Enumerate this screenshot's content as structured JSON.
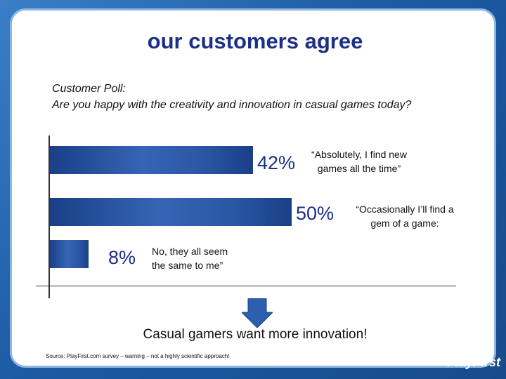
{
  "slide": {
    "title": "our customers agree",
    "poll_heading": "Customer Poll:",
    "poll_question": "Are you happy with the creativity and innovation in casual games today?",
    "conclusion": "Casual gamers want more innovation!",
    "source": "Source: PlayFirst.com survey – warning – not a highly scientific approach!",
    "logo": "PlayFirst"
  },
  "chart_data": {
    "type": "bar",
    "orientation": "horizontal",
    "categories": [
      "“Absolutely, I find new games all the time”",
      "“Occasionally I’ll find a gem of a game:",
      "No, they all seem the same to me”"
    ],
    "values": [
      42,
      50,
      8
    ],
    "value_labels": [
      "42%",
      "50%",
      "8%"
    ],
    "quote_lines": [
      [
        "“Absolutely, I find new",
        "games all the time”"
      ],
      [
        "“Occasionally I’ll find a",
        "gem of a game:"
      ],
      [
        "No, they all seem",
        "the same to me”"
      ]
    ],
    "xlim": [
      0,
      50
    ],
    "bar_color": "#2a57a5",
    "label_color": "#1d2f86",
    "grid": false,
    "legend": "none"
  },
  "colors": {
    "background": "#1d5ea8",
    "title": "#1d2f86",
    "arrow": "#2c5fae"
  },
  "icons": {
    "arrow": "down-arrow-icon"
  }
}
